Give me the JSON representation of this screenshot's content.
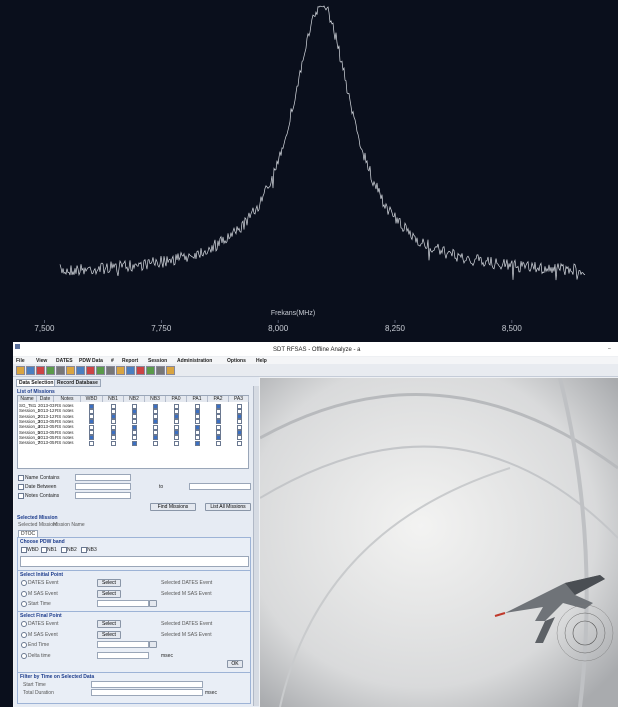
{
  "spectrum": {
    "x_label": "Frekans(MHz)",
    "xlim": [
      7405,
      8727
    ],
    "xticks": [
      {
        "value": 7500,
        "label": "7,500"
      },
      {
        "value": 7750,
        "label": "7,750"
      },
      {
        "value": 8000,
        "label": "8,000"
      },
      {
        "value": 8250,
        "label": "8,250"
      },
      {
        "value": 8500,
        "label": "8,500"
      }
    ]
  },
  "window": {
    "title": "SDT RFSAS - Offline Analyze - a",
    "menu": [
      "File",
      "View",
      "DATES",
      "PDW Data",
      "#",
      "Report",
      "Session",
      "Administration",
      "Options",
      "Help"
    ],
    "tabs": [
      "Data Selection",
      "Record Database"
    ],
    "missions": {
      "heading": "List of Missions",
      "columns": [
        "Name",
        "Date",
        "Notes",
        "WBD",
        "NB1",
        "NB2",
        "NB3",
        "PA0",
        "PA1",
        "PA2",
        "PA3"
      ],
      "rows": [
        [
          "SG_Tst1",
          "2013-03",
          "RS notes"
        ],
        [
          "Session_1",
          "2013-12",
          "RS notes"
        ],
        [
          "Session_2",
          "2013-12",
          "RS notes"
        ],
        [
          "Session_3",
          "2013-05",
          "RS notes"
        ],
        [
          "Session_4",
          "2013-05",
          "RS notes"
        ],
        [
          "Session_5",
          "2013-05",
          "RS notes"
        ],
        [
          "Session_6",
          "2013-05",
          "RS notes"
        ],
        [
          "Session_7",
          "2013-05",
          "RS notes"
        ]
      ]
    },
    "filters": {
      "name": "Name Contains",
      "date": "Date Between",
      "to": "to",
      "notes": "Notes Contains",
      "find": "Find Missions",
      "list_all": "List All Missions"
    },
    "selected": {
      "heading": "Selected Mission",
      "label": "Selected Mission:",
      "value": "Mission Name",
      "tab": "DTOC"
    },
    "band": {
      "heading": "Choose PDW band",
      "options": [
        "WBD",
        "NB1",
        "NB2",
        "NB3"
      ]
    },
    "initial": {
      "heading": "Select Initial Point",
      "rows": [
        {
          "label": "DATES Event",
          "button": "Select",
          "result": "Selected DATES Event"
        },
        {
          "label": "M SAS Event",
          "button": "Select",
          "result": "Selected M SAS Event"
        },
        {
          "label": "Start Time"
        }
      ]
    },
    "final": {
      "heading": "Select Final Point",
      "rows": [
        {
          "label": "DATES Event",
          "button": "Select",
          "result": "Selected DATES Event"
        },
        {
          "label": "M SAS Event",
          "button": "Select",
          "result": "Selected M SAS Event"
        },
        {
          "label": "End Time"
        },
        {
          "label": "Delta time",
          "unit": "msec"
        }
      ],
      "ok": "OK"
    },
    "time_filter": {
      "heading": "Filter by Time on Selected Data",
      "start": "Start Time",
      "duration": "Total Duration",
      "unit": "msec"
    }
  }
}
